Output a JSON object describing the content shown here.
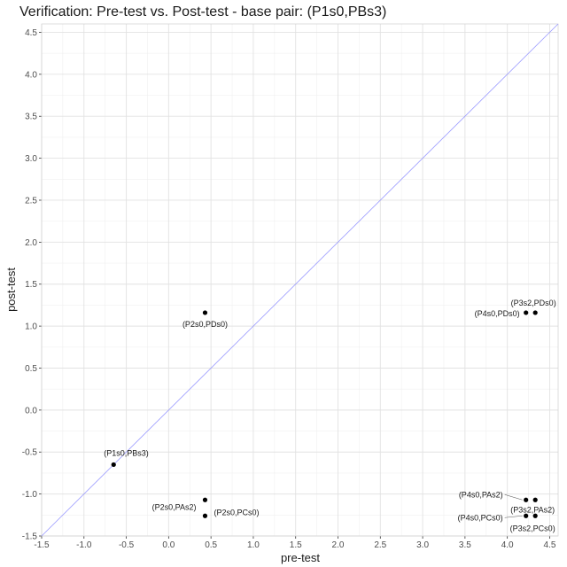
{
  "chart_data": {
    "type": "scatter",
    "title": "Verification: Pre-test vs. Post-test - base pair: (P1s0,PBs3)",
    "xlabel": "pre-test",
    "ylabel": "post-test",
    "xlim": [
      -1.5,
      4.6
    ],
    "ylim": [
      -1.5,
      4.6
    ],
    "x_ticks": [
      "-1.5",
      "-1.0",
      "-0.5",
      "0.0",
      "0.5",
      "1.0",
      "1.5",
      "2.0",
      "2.5",
      "3.0",
      "3.5",
      "4.0",
      "4.5"
    ],
    "y_ticks": [
      "-1.5",
      "-1.0",
      "-0.5",
      "0.0",
      "0.5",
      "1.0",
      "1.5",
      "2.0",
      "2.5",
      "3.0",
      "3.5",
      "4.0",
      "4.5"
    ],
    "grid": true,
    "reference_line": {
      "type": "identity",
      "color": "#9999ff"
    },
    "point_color": "#000000",
    "points": [
      {
        "label": "(P1s0,PBs3)",
        "x": -0.65,
        "y": -0.65
      },
      {
        "label": "(P2s0,PDs0)",
        "x": 0.43,
        "y": 1.16
      },
      {
        "label": "(P2s0,PAs2)",
        "x": 0.43,
        "y": -1.07
      },
      {
        "label": "(P2s0,PCs0)",
        "x": 0.43,
        "y": -1.26
      },
      {
        "label": "(P3s2,PDs0)",
        "x": 4.33,
        "y": 1.16
      },
      {
        "label": "(P4s0,PDs0)",
        "x": 4.22,
        "y": 1.16
      },
      {
        "label": "(P4s0,PAs2)",
        "x": 4.22,
        "y": -1.07
      },
      {
        "label": "(P3s2,PAs2)",
        "x": 4.33,
        "y": -1.07
      },
      {
        "label": "(P4s0,PCs0)",
        "x": 4.22,
        "y": -1.26
      },
      {
        "label": "(P3s2,PCs0)",
        "x": 4.33,
        "y": -1.26
      }
    ]
  }
}
